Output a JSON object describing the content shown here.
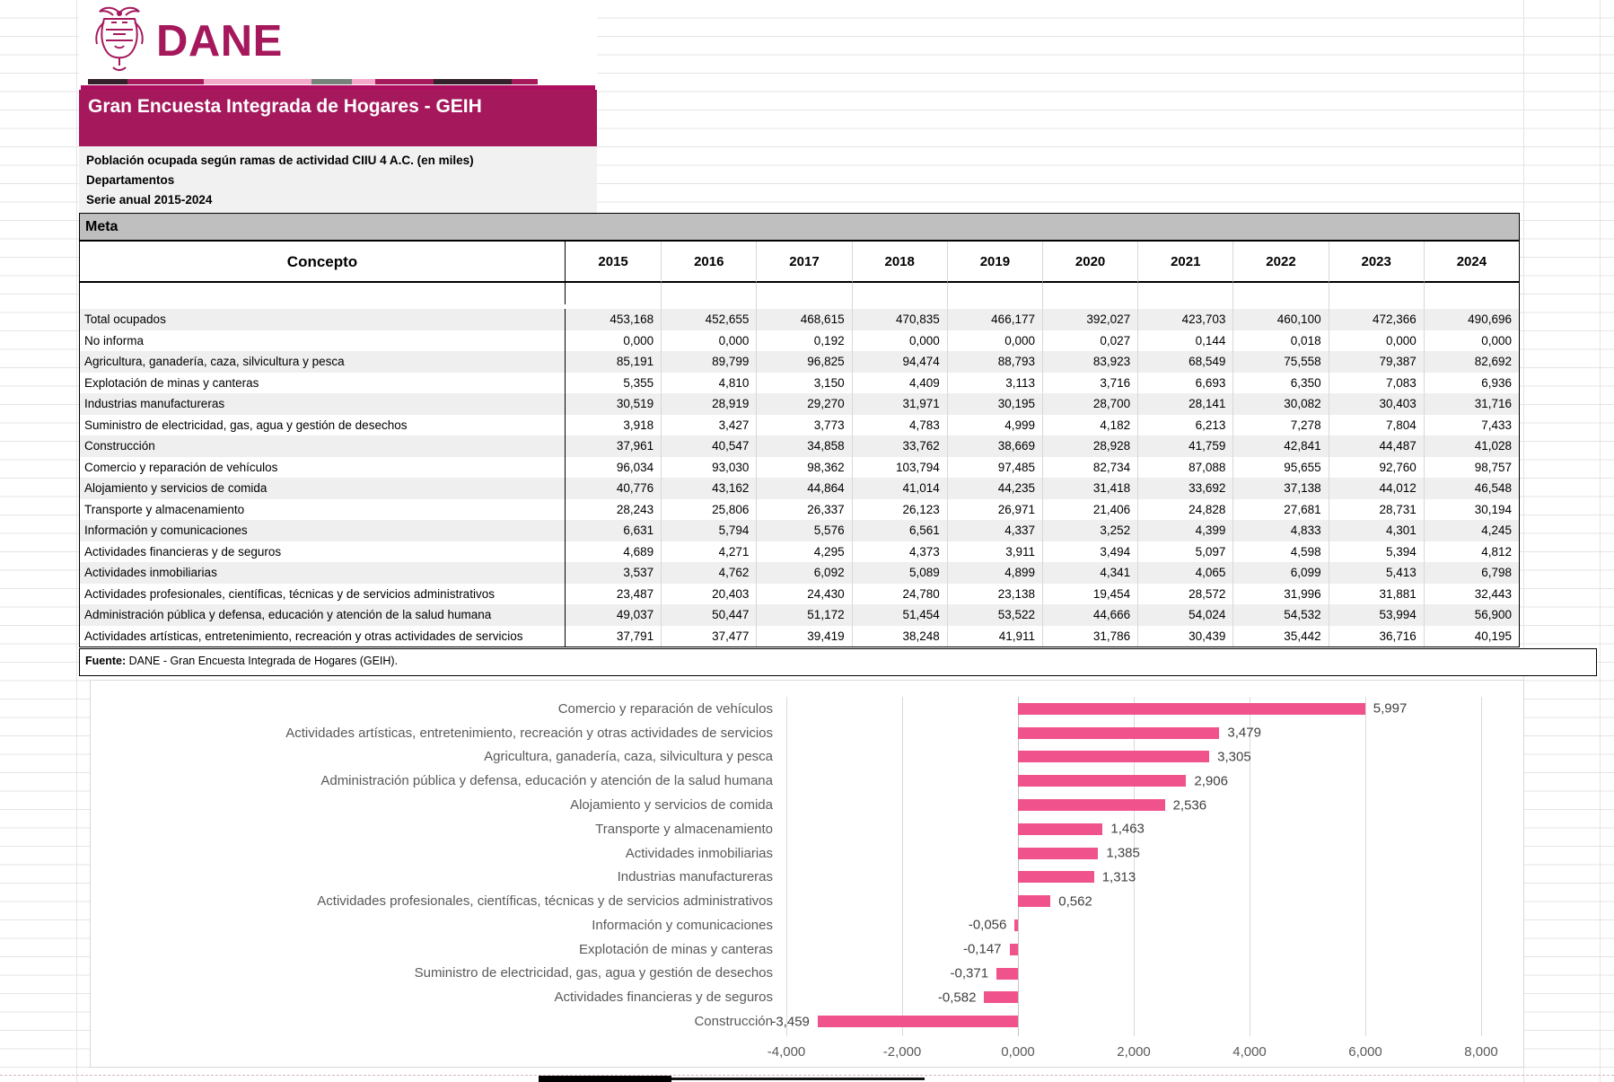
{
  "header": {
    "logo_text": "DANE",
    "banner_title": "Gran Encuesta Integrada de Hogares - GEIH",
    "subtitle_lines": [
      "Población ocupada según ramas de actividad CIIU 4 A.C. (en miles)",
      "Departamentos",
      "Serie anual 2015-2024"
    ],
    "colors": {
      "brand": "#A5195C"
    }
  },
  "table": {
    "section_label": "Meta",
    "concept_header": "Concepto",
    "years": [
      "2015",
      "2016",
      "2017",
      "2018",
      "2019",
      "2020",
      "2021",
      "2022",
      "2023",
      "2024"
    ],
    "rows": [
      {
        "label": "Total ocupados",
        "values": [
          "453,168",
          "452,655",
          "468,615",
          "470,835",
          "466,177",
          "392,027",
          "423,703",
          "460,100",
          "472,366",
          "490,696"
        ]
      },
      {
        "label": "No informa",
        "values": [
          "0,000",
          "0,000",
          "0,192",
          "0,000",
          "0,000",
          "0,027",
          "0,144",
          "0,018",
          "0,000",
          "0,000"
        ]
      },
      {
        "label": "Agricultura, ganadería, caza, silvicultura y pesca",
        "values": [
          "85,191",
          "89,799",
          "96,825",
          "94,474",
          "88,793",
          "83,923",
          "68,549",
          "75,558",
          "79,387",
          "82,692"
        ]
      },
      {
        "label": "Explotación de minas y canteras",
        "values": [
          "5,355",
          "4,810",
          "3,150",
          "4,409",
          "3,113",
          "3,716",
          "6,693",
          "6,350",
          "7,083",
          "6,936"
        ]
      },
      {
        "label": "Industrias manufactureras",
        "values": [
          "30,519",
          "28,919",
          "29,270",
          "31,971",
          "30,195",
          "28,700",
          "28,141",
          "30,082",
          "30,403",
          "31,716"
        ]
      },
      {
        "label": "Suministro de electricidad, gas, agua y gestión de desechos",
        "values": [
          "3,918",
          "3,427",
          "3,773",
          "4,783",
          "4,999",
          "4,182",
          "6,213",
          "7,278",
          "7,804",
          "7,433"
        ]
      },
      {
        "label": "Construcción",
        "values": [
          "37,961",
          "40,547",
          "34,858",
          "33,762",
          "38,669",
          "28,928",
          "41,759",
          "42,841",
          "44,487",
          "41,028"
        ]
      },
      {
        "label": "Comercio y reparación de vehículos",
        "values": [
          "96,034",
          "93,030",
          "98,362",
          "103,794",
          "97,485",
          "82,734",
          "87,088",
          "95,655",
          "92,760",
          "98,757"
        ]
      },
      {
        "label": "Alojamiento y servicios de comida",
        "values": [
          "40,776",
          "43,162",
          "44,864",
          "41,014",
          "44,235",
          "31,418",
          "33,692",
          "37,138",
          "44,012",
          "46,548"
        ]
      },
      {
        "label": "Transporte y almacenamiento",
        "values": [
          "28,243",
          "25,806",
          "26,337",
          "26,123",
          "26,971",
          "21,406",
          "24,828",
          "27,681",
          "28,731",
          "30,194"
        ]
      },
      {
        "label": "Información y comunicaciones",
        "values": [
          "6,631",
          "5,794",
          "5,576",
          "6,561",
          "4,337",
          "3,252",
          "4,399",
          "4,833",
          "4,301",
          "4,245"
        ]
      },
      {
        "label": "Actividades financieras y de seguros",
        "values": [
          "4,689",
          "4,271",
          "4,295",
          "4,373",
          "3,911",
          "3,494",
          "5,097",
          "4,598",
          "5,394",
          "4,812"
        ]
      },
      {
        "label": "Actividades inmobiliarias",
        "values": [
          "3,537",
          "4,762",
          "6,092",
          "5,089",
          "4,899",
          "4,341",
          "4,065",
          "6,099",
          "5,413",
          "6,798"
        ]
      },
      {
        "label": "Actividades profesionales, científicas, técnicas y de servicios administrativos",
        "values": [
          "23,487",
          "20,403",
          "24,430",
          "24,780",
          "23,138",
          "19,454",
          "28,572",
          "31,996",
          "31,881",
          "32,443"
        ]
      },
      {
        "label": "Administración pública y defensa, educación y atención de la salud humana",
        "values": [
          "49,037",
          "50,447",
          "51,172",
          "51,454",
          "53,522",
          "44,666",
          "54,024",
          "54,532",
          "53,994",
          "56,900"
        ]
      },
      {
        "label": "Actividades artísticas, entretenimiento, recreación y otras actividades de servicios",
        "values": [
          "37,791",
          "37,477",
          "39,419",
          "38,248",
          "41,911",
          "31,786",
          "30,439",
          "35,442",
          "36,716",
          "40,195"
        ]
      }
    ]
  },
  "fuente": {
    "label": "Fuente:",
    "text": " DANE - Gran Encuesta Integrada de Hogares (GEIH)."
  },
  "chart_data": {
    "type": "bar",
    "orientation": "horizontal",
    "categories": [
      "Comercio y reparación de vehículos",
      "Actividades artísticas, entretenimiento, recreación y otras actividades de servicios",
      "Agricultura, ganadería, caza, silvicultura y pesca",
      "Administración pública y defensa, educación y atención de la salud humana",
      "Alojamiento y servicios de comida",
      "Transporte y almacenamiento",
      "Actividades inmobiliarias",
      "Industrias manufactureras",
      "Actividades profesionales, científicas, técnicas y de servicios administrativos",
      "Información y comunicaciones",
      "Explotación de minas y canteras",
      "Suministro de electricidad, gas, agua y gestión de desechos",
      "Actividades financieras y de seguros",
      "Construcción"
    ],
    "values": [
      5.997,
      3.479,
      3.305,
      2.906,
      2.536,
      1.463,
      1.385,
      1.313,
      0.562,
      -0.056,
      -0.147,
      -0.371,
      -0.582,
      -3.459
    ],
    "value_labels": [
      "5,997",
      "3,479",
      "3,305",
      "2,906",
      "2,536",
      "1,463",
      "1,385",
      "1,313",
      "0,562",
      "-0,056",
      "-0,147",
      "-0,371",
      "-0,582",
      "-3,459"
    ],
    "x_ticks": [
      "-4,000",
      "-2,000",
      "0,000",
      "2,000",
      "4,000",
      "6,000",
      "8,000"
    ],
    "xlim": [
      -4,
      8
    ],
    "grid": true,
    "legend": "none",
    "bar_color": "#F0538C",
    "title": ""
  }
}
